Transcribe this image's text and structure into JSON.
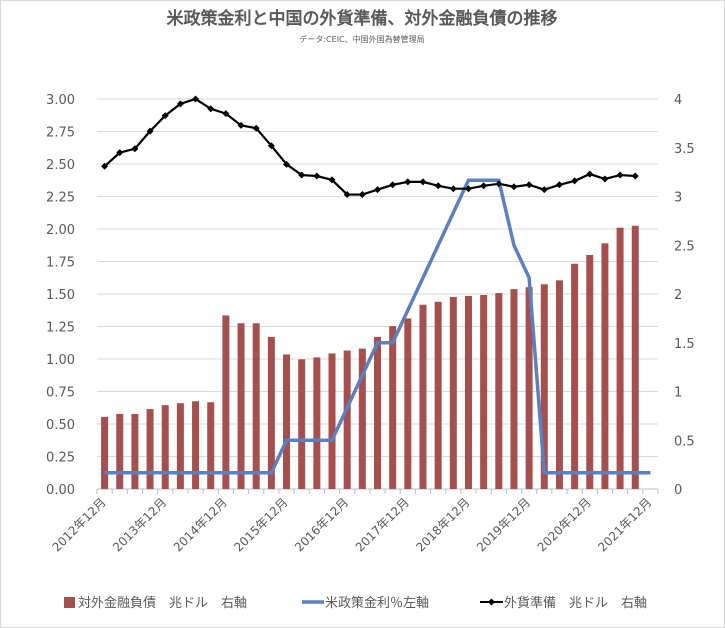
{
  "chart_data": {
    "type": "bar+line",
    "title": "米政策金利と中国の外貨準備、対外金融負債の推移",
    "subtitle": "データ:CEIC、中国外国為替管理局",
    "x_tick_labels": [
      "2012年12月",
      "2013年12月",
      "2014年12月",
      "2015年12月",
      "2016年12月",
      "2017年12月",
      "2018年12月",
      "2019年12月",
      "2020年12月",
      "2021年12月"
    ],
    "n_categories": 37,
    "y_left": {
      "range": [
        0,
        3
      ],
      "ticks": [
        "0.00",
        "0.25",
        "0.50",
        "0.75",
        "1.00",
        "1.25",
        "1.50",
        "1.75",
        "2.00",
        "2.25",
        "2.50",
        "2.75",
        "3.00"
      ]
    },
    "y_right": {
      "range": [
        0,
        4
      ],
      "ticks": [
        "0",
        "0.5",
        "1",
        "1.5",
        "2",
        "2.5",
        "3",
        "3.5",
        "4"
      ]
    },
    "grid": true,
    "legend_position": "bottom",
    "series": [
      {
        "name": "対外金融負債　兆ドル　右軸",
        "type": "bar",
        "axis": "right",
        "color": "#a5504f",
        "values": [
          0.74,
          0.77,
          0.77,
          0.82,
          0.86,
          0.88,
          0.9,
          0.89,
          1.78,
          1.7,
          1.7,
          1.56,
          1.38,
          1.33,
          1.35,
          1.39,
          1.42,
          1.44,
          1.56,
          1.67,
          1.75,
          1.89,
          1.92,
          1.97,
          1.98,
          1.99,
          2.01,
          2.05,
          2.07,
          2.1,
          2.14,
          2.31,
          2.4,
          2.52,
          2.68,
          2.7,
          null
        ]
      },
      {
        "name": "米政策金利％左軸",
        "type": "line",
        "axis": "left",
        "color": "#5b7fbf",
        "values": [
          0.125,
          0.125,
          0.125,
          0.125,
          0.125,
          0.125,
          0.125,
          0.125,
          0.125,
          0.125,
          0.125,
          0.125,
          0.375,
          0.375,
          0.375,
          0.375,
          0.625,
          0.875,
          1.125,
          1.125,
          1.375,
          1.625,
          1.875,
          2.125,
          2.375,
          2.375,
          2.375,
          1.875,
          1.625,
          0.125,
          0.125,
          0.125,
          0.125,
          0.125,
          0.125,
          0.125,
          0.125
        ]
      },
      {
        "name": "外貨準備　兆ドル　右軸",
        "type": "line-marker",
        "axis": "right",
        "color": "#000000",
        "values": [
          3.31,
          3.45,
          3.49,
          3.67,
          3.83,
          3.95,
          4.0,
          3.9,
          3.85,
          3.73,
          3.7,
          3.52,
          3.33,
          3.22,
          3.21,
          3.17,
          3.02,
          3.02,
          3.07,
          3.12,
          3.15,
          3.15,
          3.11,
          3.08,
          3.08,
          3.11,
          3.13,
          3.1,
          3.12,
          3.07,
          3.12,
          3.16,
          3.23,
          3.18,
          3.22,
          3.21,
          null
        ]
      }
    ]
  }
}
